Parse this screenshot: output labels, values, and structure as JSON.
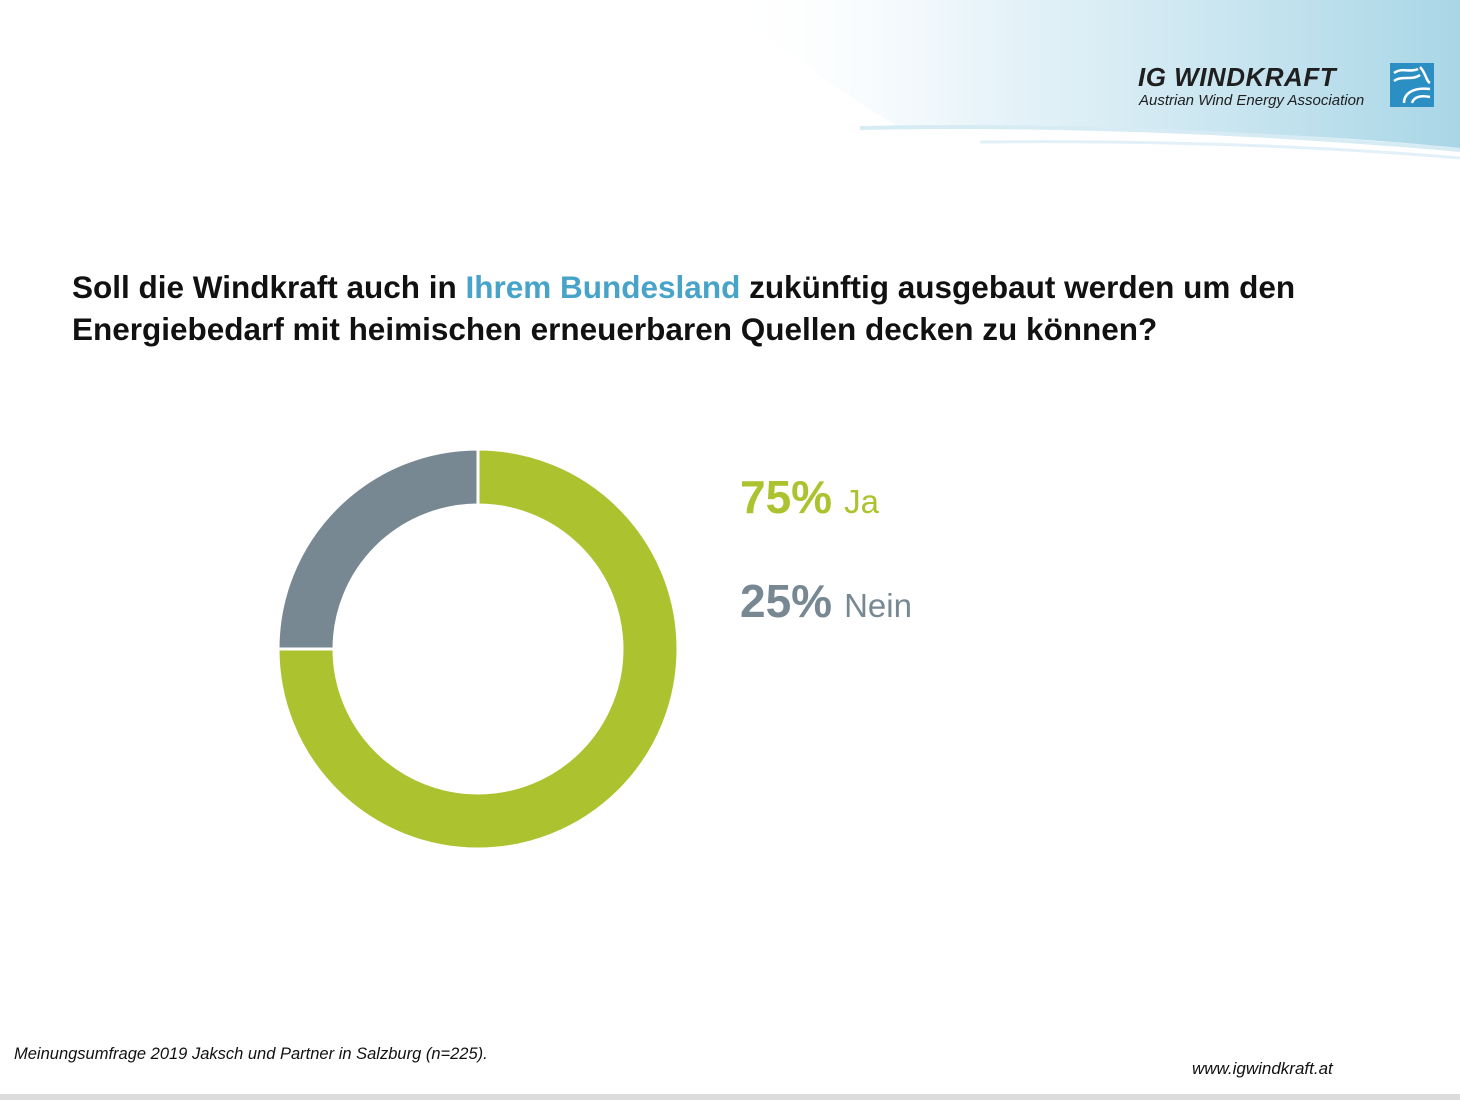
{
  "logo": {
    "title": "IG WINDKRAFT",
    "subtitle": "Austrian Wind Energy Association"
  },
  "question": {
    "part1": "Soll die Windkraft auch in ",
    "highlight": "Ihrem Bundesland",
    "part2": " zukünftig ausgebaut werden um den Energiebedarf mit heimischen erneuerbaren Quellen decken zu können?"
  },
  "chart_data": {
    "type": "pie",
    "style": "donut",
    "categories": [
      "Ja",
      "Nein"
    ],
    "values": [
      75,
      25
    ],
    "labels": [
      "75%",
      "25%"
    ],
    "colors": [
      "#adc22f",
      "#778893"
    ]
  },
  "legend": [
    {
      "pct": "75%",
      "label": "Ja",
      "color": "#adc22f"
    },
    {
      "pct": "25%",
      "label": "Nein",
      "color": "#778893"
    }
  ],
  "footer": {
    "source": "Meinungsumfrage 2019 Jaksch und Partner in Salzburg (n=225).",
    "website": "www.igwindkraft.at"
  },
  "colors": {
    "accent": "#47a3c7",
    "ja": "#adc22f",
    "nein": "#778893"
  }
}
